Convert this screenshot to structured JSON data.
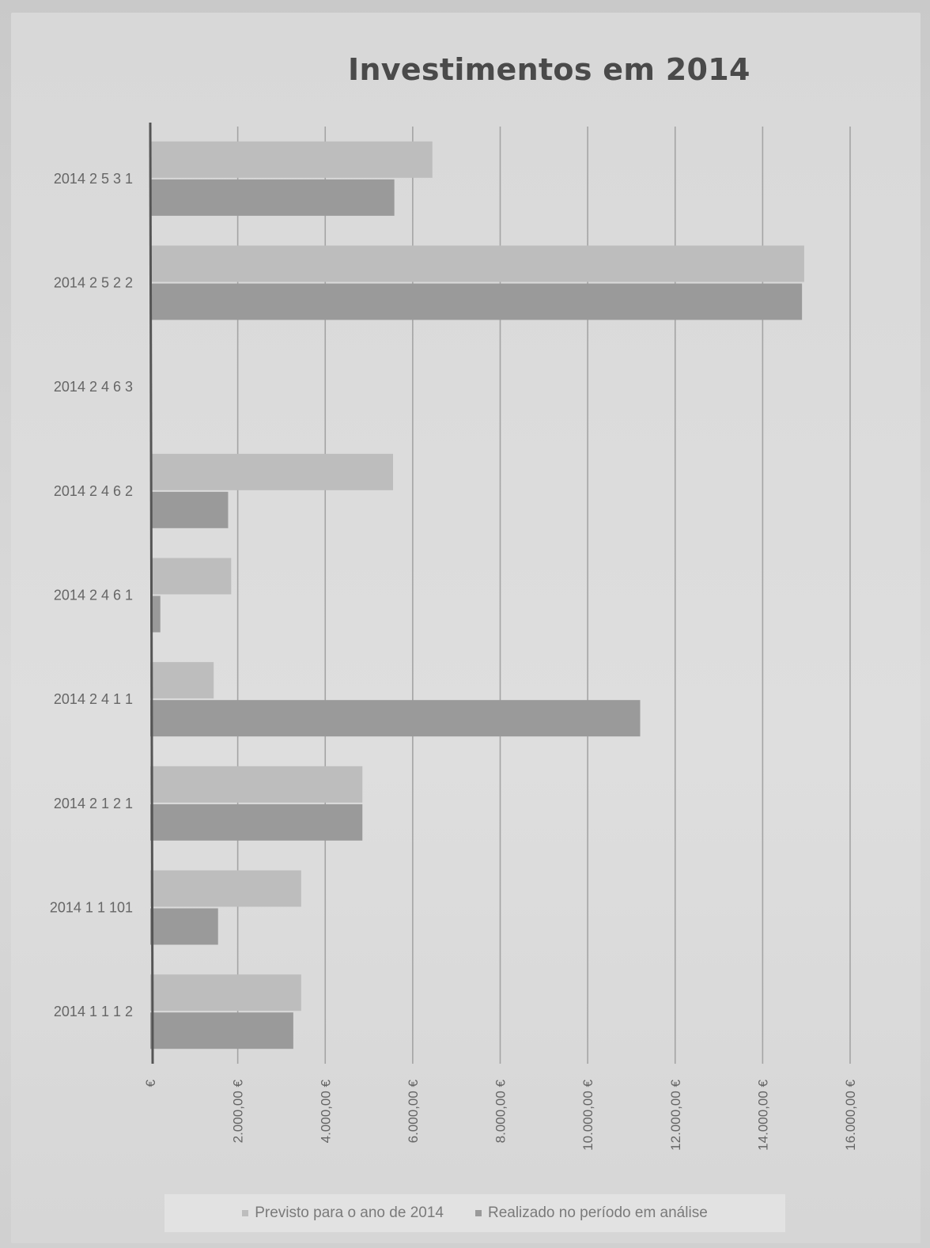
{
  "chart_data": {
    "type": "bar",
    "orientation": "horizontal",
    "title": "Investimentos em 2014",
    "xlabel": "",
    "ylabel": "",
    "xlim": [
      0,
      16000
    ],
    "x_ticks": [
      "€",
      "2.000,00 €",
      "4.000,00 €",
      "6.000,00 €",
      "8.000,00 €",
      "10.000,00 €",
      "12.000,00 €",
      "14.000,00 €",
      "16.000,00 €"
    ],
    "categories": [
      "2014 2 5 3 1",
      "2014 2 5 2 2",
      "2014 2 4 6 3",
      "2014 2 4 6 2",
      "2014 2 4 6 1",
      "2014 2 4 1 1",
      "2014 2 1 2 1",
      "2014 1 1 101",
      "2014 1 1 1 2"
    ],
    "series": [
      {
        "name": "Previsto para o ano de 2014",
        "color": "#bdbdbd",
        "values": [
          6450,
          14950,
          0,
          5550,
          1850,
          1450,
          4850,
          3450,
          3450
        ]
      },
      {
        "name": "Realizado no período em análise",
        "color": "#9a9a9a",
        "values": [
          5580,
          14900,
          0,
          1780,
          230,
          11200,
          4850,
          1550,
          3270
        ]
      }
    ],
    "grid": true,
    "legend_position": "bottom"
  }
}
